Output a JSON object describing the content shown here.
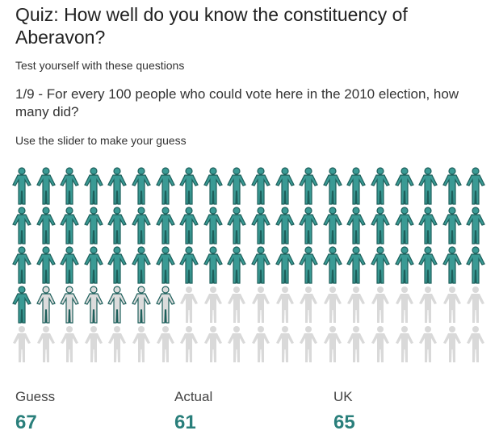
{
  "title": "Quiz: How well do you know the constituency of Aberavon?",
  "subtitle": "Test yourself with these questions",
  "question": "1/9 - For every 100 people who could vote here in the 2010 election, how many did?",
  "hint": "Use the slider to make your guess",
  "slider": {
    "total": 100,
    "actual": 61,
    "guess": 67
  },
  "stats": [
    {
      "label": "Guess",
      "value": "67"
    },
    {
      "label": "Actual",
      "value": "61"
    },
    {
      "label": "UK",
      "value": "65"
    }
  ],
  "colors": {
    "filled": "#3a9a94",
    "outline": "#1d5f5b",
    "empty": "#d9d9d9",
    "guess_fill": "#dcdcdc",
    "value": "#2a7f7b"
  }
}
